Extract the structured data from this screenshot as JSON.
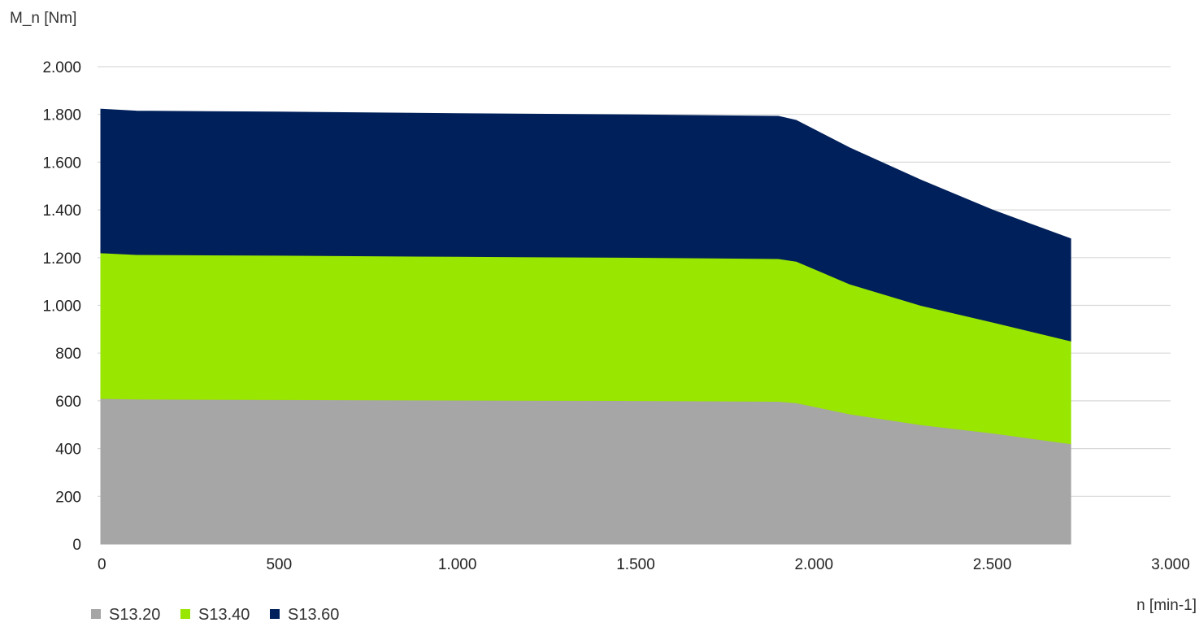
{
  "chart_data": {
    "type": "area",
    "stacked": true,
    "xlabel": "n [min-1]",
    "ylabel": "M_n [Nm]",
    "xlim": [
      0,
      3000
    ],
    "ylim": [
      0,
      2000
    ],
    "x_ticks": [
      0,
      500,
      1000,
      1500,
      2000,
      2500,
      3000
    ],
    "x_tick_labels": [
      "0",
      "500",
      "1.000",
      "1.500",
      "2.000",
      "2.500",
      "3.000"
    ],
    "y_ticks": [
      0,
      200,
      400,
      600,
      800,
      1000,
      1200,
      1400,
      1600,
      1800,
      2000
    ],
    "y_tick_labels": [
      "0",
      "200",
      "400",
      "600",
      "800",
      "1.000",
      "1.200",
      "1.400",
      "1.600",
      "1.800",
      "2.000"
    ],
    "grid": "horizontal",
    "legend_position": "bottom-left",
    "x": [
      0,
      100,
      500,
      1000,
      1500,
      1900,
      1950,
      2100,
      2300,
      2500,
      2720
    ],
    "series": [
      {
        "name": "S13.20",
        "color": "#a6a6a6",
        "values": [
          610,
          607,
          605,
          603,
          601,
          598,
          592,
          545,
          500,
          465,
          420
        ]
      },
      {
        "name": "S13.40",
        "color": "#99e600",
        "values": [
          610,
          606,
          605,
          602,
          600,
          598,
          593,
          545,
          500,
          465,
          431
        ]
      },
      {
        "name": "S13.60",
        "color": "#00205b",
        "values": [
          602,
          601,
          600,
          598,
          597,
          596,
          590,
          570,
          525,
          470,
          428
        ]
      }
    ]
  }
}
